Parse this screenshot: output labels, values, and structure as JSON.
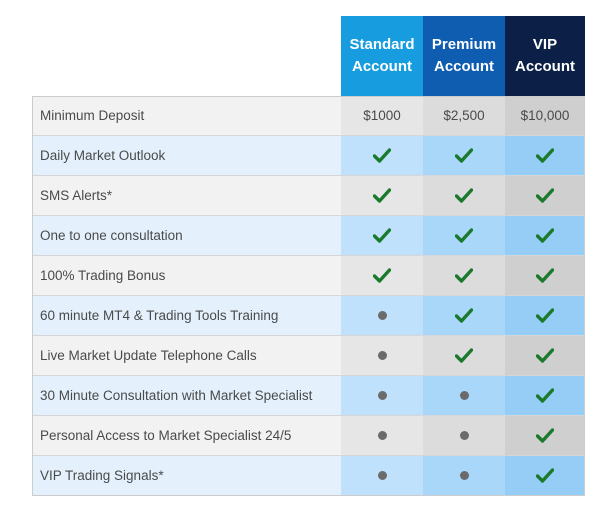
{
  "headers": {
    "standard": [
      "Standard",
      "Account"
    ],
    "premium": [
      "Premium",
      "Account"
    ],
    "vip": [
      "VIP",
      "Account"
    ]
  },
  "colors": {
    "standard_header": "#179ce0",
    "premium_header": "#0f5db0",
    "vip_header": "#0c1f47",
    "check": "#1a7a2b",
    "dot": "#6b6b6b"
  },
  "rows": [
    {
      "label": "Minimum Deposit",
      "standard": "$1000",
      "premium": "$2,500",
      "vip": "$10,000"
    },
    {
      "label": "Daily Market Outlook",
      "standard": "check",
      "premium": "check",
      "vip": "check"
    },
    {
      "label": "SMS Alerts*",
      "standard": "check",
      "premium": "check",
      "vip": "check"
    },
    {
      "label": "One to one consultation",
      "standard": "check",
      "premium": "check",
      "vip": "check"
    },
    {
      "label": "100% Trading Bonus",
      "standard": "check",
      "premium": "check",
      "vip": "check"
    },
    {
      "label": "60 minute MT4 & Trading Tools Training",
      "standard": "dot",
      "premium": "check",
      "vip": "check"
    },
    {
      "label": "Live Market Update Telephone Calls",
      "standard": "dot",
      "premium": "check",
      "vip": "check"
    },
    {
      "label": "30 Minute Consultation with Market Specialist",
      "standard": "dot",
      "premium": "dot",
      "vip": "check"
    },
    {
      "label": "Personal Access to Market Specialist 24/5",
      "standard": "dot",
      "premium": "dot",
      "vip": "check"
    },
    {
      "label": "VIP Trading Signals*",
      "standard": "dot",
      "premium": "dot",
      "vip": "check"
    }
  ]
}
